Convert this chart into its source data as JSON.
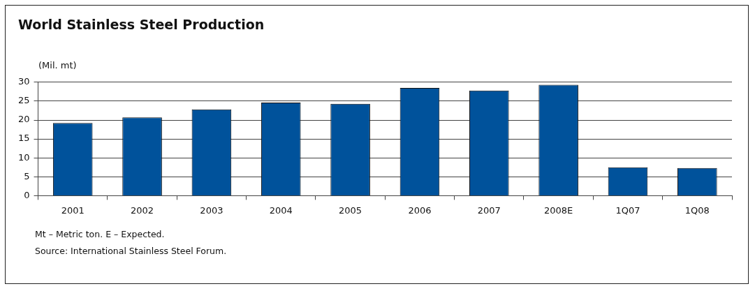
{
  "chart_data": {
    "type": "bar",
    "title": "World Stainless Steel Production",
    "ylabel": "(Mil. mt)",
    "categories": [
      "2001",
      "2002",
      "2003",
      "2004",
      "2005",
      "2006",
      "2007",
      "2008E",
      "1Q07",
      "1Q08"
    ],
    "values": [
      19.2,
      20.7,
      22.8,
      24.6,
      24.3,
      28.5,
      27.8,
      29.3,
      7.5,
      7.3
    ],
    "color": "#00529b",
    "ylim": [
      0,
      30
    ],
    "yticks": [
      0,
      5,
      10,
      15,
      20,
      25,
      30
    ],
    "grid": "y",
    "legend": false,
    "annotations": [
      "Mt – Metric ton. E – Expected.",
      "Source: International Stainless Steel Forum."
    ]
  }
}
